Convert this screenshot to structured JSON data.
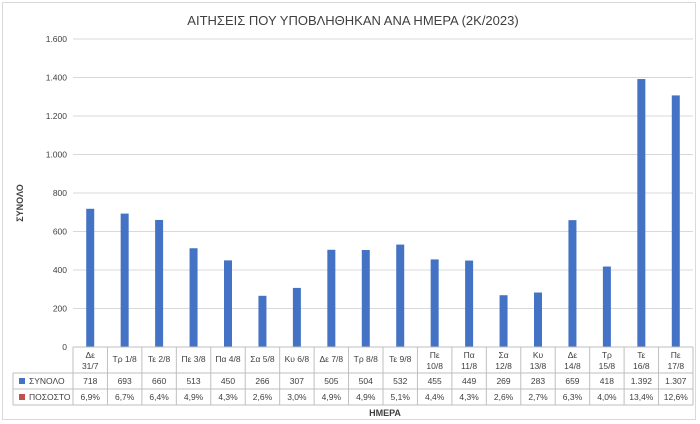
{
  "chart_data": {
    "type": "bar",
    "title": "ΑΙΤΗΣΕΙΣ ΠΟΥ ΥΠΟΒΛΗΘΗΚΑΝ ΑΝΑ ΗΜΕΡΑ (2Κ/2023)",
    "xlabel": "ΗΜΕΡΑ",
    "ylabel": "ΣΥΝΟΛΟ",
    "ylim": [
      0,
      1600
    ],
    "yticks": [
      0,
      200,
      400,
      600,
      800,
      1000,
      1200,
      1400,
      1600
    ],
    "ytick_labels": [
      "0",
      "200",
      "400",
      "600",
      "800",
      "1.000",
      "1.200",
      "1.400",
      "1.600"
    ],
    "grid": true,
    "categories": [
      "Δε 31/7",
      "Τρ 1/8",
      "Τε 2/8",
      "Πε 3/8",
      "Πα 4/8",
      "Σα 5/8",
      "Κυ 6/8",
      "Δε 7/8",
      "Τρ 8/8",
      "Τε 9/8",
      "Πε 10/8",
      "Πα 11/8",
      "Σα 12/8",
      "Κυ 13/8",
      "Δε 14/8",
      "Τρ 15/8",
      "Τε 16/8",
      "Πε 17/8"
    ],
    "series": [
      {
        "name": "ΣΥΝΟΛΟ",
        "color": "#4472c4",
        "values": [
          718,
          693,
          660,
          513,
          450,
          266,
          307,
          505,
          504,
          532,
          455,
          449,
          269,
          283,
          659,
          418,
          1392,
          1307
        ],
        "labels": [
          "718",
          "693",
          "660",
          "513",
          "450",
          "266",
          "307",
          "505",
          "504",
          "532",
          "455",
          "449",
          "269",
          "283",
          "659",
          "418",
          "1.392",
          "1.307"
        ]
      },
      {
        "name": "ΠΟΣΟΣΤΟ",
        "color": "#c0504d",
        "values": [
          6.9,
          6.7,
          6.4,
          4.9,
          4.3,
          2.6,
          3.0,
          4.9,
          4.9,
          5.1,
          4.4,
          4.3,
          2.6,
          2.7,
          6.3,
          4.0,
          13.4,
          12.6
        ],
        "labels": [
          "6,9%",
          "6,7%",
          "6,4%",
          "4,9%",
          "4,3%",
          "2,6%",
          "3,0%",
          "4,9%",
          "4,9%",
          "5,1%",
          "4,4%",
          "4,3%",
          "2,6%",
          "2,7%",
          "6,3%",
          "4,0%",
          "13,4%",
          "12,6%"
        ]
      }
    ],
    "data_table": true
  }
}
